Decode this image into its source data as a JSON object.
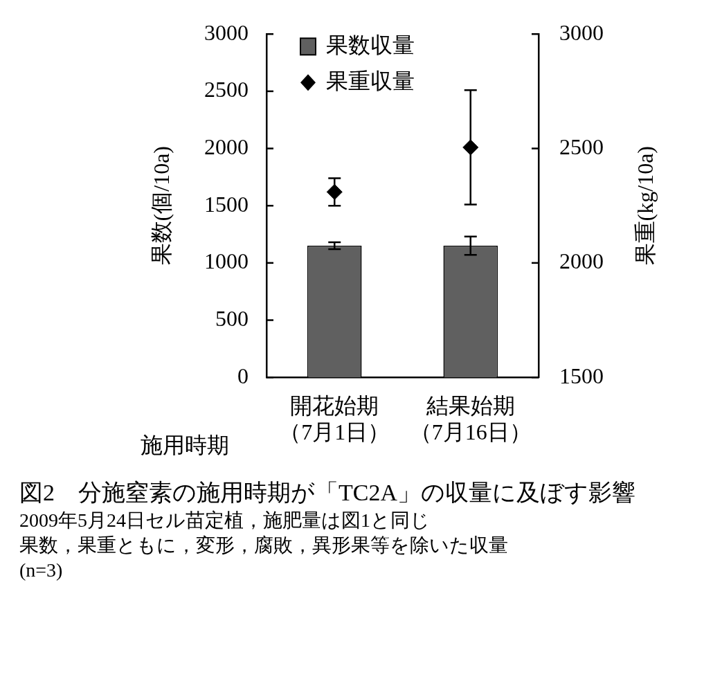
{
  "chart_data": {
    "type": "bar",
    "title": "図2　分施窒素の施用時期が「TC2A」の収量に及ぼす影響",
    "xlabel": "施用時期",
    "ylabel": "果数(個/10a)",
    "y2label": "果重(kg/10a)",
    "categories": [
      "開花始期（7月1日）",
      "結果始期（7月16日）"
    ],
    "series": [
      {
        "name": "果数収量",
        "color": "#606060",
        "values": [
          1150,
          1150
        ],
        "errors": [
          30,
          80
        ]
      },
      {
        "name": "果重収量",
        "type": "scatter",
        "axis": "y2",
        "color": "#000000",
        "x": [
          "開花始期（7月1日）",
          "結果始期（7月16日）"
        ],
        "values": [
          2310,
          2505
        ],
        "errors": [
          60,
          250
        ]
      }
    ],
    "ylim": [
      0,
      3000
    ],
    "yticks": [
      0,
      500,
      1000,
      1500,
      2000,
      2500,
      3000
    ],
    "y2lim": [
      1500,
      3000
    ],
    "y2ticks": [
      1500,
      2000,
      2500,
      3000
    ],
    "grid": false,
    "legend": "top left",
    "marker": "diamond",
    "annotations": [
      "2009年5月24日セル苗定植，施肥量は図1と同じ",
      "果数，果重ともに，変形，腐敗，異形果等を除いた収量",
      "(n=3)"
    ]
  }
}
